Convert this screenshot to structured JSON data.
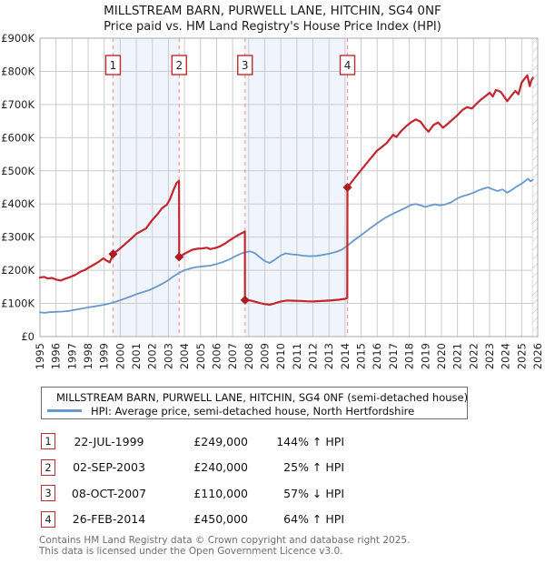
{
  "title": "MILLSTREAM BARN, PURWELL LANE, HITCHIN, SG4 0NF",
  "subtitle": "Price paid vs. HM Land Registry's House Price Index (HPI)",
  "colors": {
    "price_line": "#c4262e",
    "hpi_line": "#6899cc",
    "marker": "#b01a22",
    "dashed_line": "#f09a9a",
    "band": "#f0f4fc",
    "grid": "#cccccc",
    "frame": "#a8a8a8",
    "hatch_line": "#b8b8b8"
  },
  "chart_data": {
    "type": "line",
    "title": "MILLSTREAM BARN, PURWELL LANE, HITCHIN, SG4 0NF",
    "subtitle": "Price paid vs. HM Land Registry's House Price Index (HPI)",
    "xlabel": "",
    "ylabel": "",
    "grid": true,
    "x_axis": {
      "range": [
        1995,
        2026
      ],
      "ticks": [
        1995,
        1996,
        1997,
        1998,
        1999,
        2000,
        2001,
        2002,
        2003,
        2004,
        2005,
        2006,
        2007,
        2008,
        2009,
        2010,
        2011,
        2012,
        2013,
        2014,
        2015,
        2016,
        2017,
        2018,
        2019,
        2020,
        2021,
        2022,
        2023,
        2024,
        2025,
        2026
      ]
    },
    "y_axis": {
      "range": [
        0,
        900000
      ],
      "tick_values": [
        0,
        100000,
        200000,
        300000,
        400000,
        500000,
        600000,
        700000,
        800000,
        900000
      ],
      "tick_labels": [
        "£0",
        "£100K",
        "£200K",
        "£300K",
        "£400K",
        "£500K",
        "£600K",
        "£700K",
        "£800K",
        "£900K"
      ]
    },
    "ownership_bands": [
      [
        1999.55,
        2003.67
      ],
      [
        2007.77,
        2014.15
      ]
    ],
    "future_hatch": [
      2025.67,
      2026
    ],
    "sale_markers": [
      {
        "label": "1",
        "year": 1999.55,
        "price": 249000
      },
      {
        "label": "2",
        "year": 2003.67,
        "price": 240000
      },
      {
        "label": "3",
        "year": 2007.77,
        "price": 110000
      },
      {
        "label": "4",
        "year": 2014.15,
        "price": 450000
      }
    ],
    "series": [
      {
        "name": "MILLSTREAM BARN, PURWELL LANE, HITCHIN, SG4 0NF (semi-detached house)",
        "color": "#c4262e",
        "points": [
          [
            1995.0,
            178000
          ],
          [
            1995.25,
            180000
          ],
          [
            1995.5,
            175000
          ],
          [
            1995.75,
            177000
          ],
          [
            1996.0,
            172000
          ],
          [
            1996.3,
            169000
          ],
          [
            1996.6,
            175000
          ],
          [
            1996.9,
            180000
          ],
          [
            1997.2,
            186000
          ],
          [
            1997.5,
            195000
          ],
          [
            1997.8,
            201000
          ],
          [
            1998.1,
            210000
          ],
          [
            1998.4,
            218000
          ],
          [
            1998.7,
            227000
          ],
          [
            1998.95,
            236000
          ],
          [
            1999.15,
            229000
          ],
          [
            1999.35,
            224000
          ],
          [
            1999.55,
            249000
          ],
          [
            1999.9,
            262000
          ],
          [
            2000.3,
            279000
          ],
          [
            2000.7,
            296000
          ],
          [
            2001.0,
            310000
          ],
          [
            2001.3,
            318000
          ],
          [
            2001.6,
            326000
          ],
          [
            2002.0,
            352000
          ],
          [
            2002.3,
            368000
          ],
          [
            2002.6,
            387000
          ],
          [
            2002.9,
            398000
          ],
          [
            2003.1,
            415000
          ],
          [
            2003.3,
            440000
          ],
          [
            2003.5,
            463000
          ],
          [
            2003.66,
            470000
          ],
          [
            2003.67,
            240000
          ],
          [
            2003.9,
            247000
          ],
          [
            2004.2,
            255000
          ],
          [
            2004.5,
            262000
          ],
          [
            2004.8,
            265000
          ],
          [
            2005.1,
            266000
          ],
          [
            2005.4,
            268000
          ],
          [
            2005.6,
            264000
          ],
          [
            2005.9,
            267000
          ],
          [
            2006.2,
            272000
          ],
          [
            2006.5,
            280000
          ],
          [
            2006.8,
            290000
          ],
          [
            2007.1,
            299000
          ],
          [
            2007.4,
            308000
          ],
          [
            2007.65,
            314000
          ],
          [
            2007.76,
            317000
          ],
          [
            2007.77,
            110000
          ],
          [
            2008.1,
            109000
          ],
          [
            2008.4,
            105000
          ],
          [
            2008.7,
            101000
          ],
          [
            2009.0,
            98000
          ],
          [
            2009.3,
            96000
          ],
          [
            2009.6,
            100000
          ],
          [
            2010.0,
            106000
          ],
          [
            2010.4,
            109000
          ],
          [
            2010.8,
            108000
          ],
          [
            2011.2,
            107500
          ],
          [
            2011.6,
            106500
          ],
          [
            2012.0,
            106000
          ],
          [
            2012.4,
            107000
          ],
          [
            2012.8,
            108000
          ],
          [
            2013.2,
            109500
          ],
          [
            2013.6,
            111000
          ],
          [
            2014.0,
            114000
          ],
          [
            2014.14,
            116000
          ],
          [
            2014.15,
            450000
          ],
          [
            2014.5,
            472000
          ],
          [
            2015.0,
            502000
          ],
          [
            2015.5,
            532000
          ],
          [
            2016.0,
            561000
          ],
          [
            2016.3,
            572000
          ],
          [
            2016.6,
            584000
          ],
          [
            2017.0,
            609000
          ],
          [
            2017.2,
            602000
          ],
          [
            2017.5,
            620000
          ],
          [
            2017.8,
            634000
          ],
          [
            2018.1,
            646000
          ],
          [
            2018.4,
            655000
          ],
          [
            2018.7,
            648000
          ],
          [
            2019.0,
            628000
          ],
          [
            2019.2,
            618000
          ],
          [
            2019.5,
            638000
          ],
          [
            2019.8,
            646000
          ],
          [
            2020.1,
            630000
          ],
          [
            2020.4,
            642000
          ],
          [
            2020.7,
            655000
          ],
          [
            2021.0,
            668000
          ],
          [
            2021.3,
            683000
          ],
          [
            2021.6,
            692000
          ],
          [
            2021.9,
            688000
          ],
          [
            2022.2,
            703000
          ],
          [
            2022.5,
            716000
          ],
          [
            2022.8,
            727000
          ],
          [
            2023.0,
            736000
          ],
          [
            2023.2,
            724000
          ],
          [
            2023.4,
            744000
          ],
          [
            2023.7,
            738000
          ],
          [
            2023.9,
            724000
          ],
          [
            2024.1,
            710000
          ],
          [
            2024.35,
            726000
          ],
          [
            2024.6,
            741000
          ],
          [
            2024.8,
            731000
          ],
          [
            2025.0,
            766000
          ],
          [
            2025.2,
            779000
          ],
          [
            2025.35,
            788000
          ],
          [
            2025.5,
            755000
          ],
          [
            2025.6,
            772000
          ],
          [
            2025.7,
            781000
          ]
        ]
      },
      {
        "name": "HPI: Average price, semi-detached house, North Hertfordshire",
        "color": "#6899cc",
        "points": [
          [
            1995.0,
            73000
          ],
          [
            1995.3,
            72000
          ],
          [
            1995.6,
            73500
          ],
          [
            1996.0,
            74500
          ],
          [
            1996.4,
            75500
          ],
          [
            1996.8,
            77500
          ],
          [
            1997.2,
            81000
          ],
          [
            1997.6,
            84500
          ],
          [
            1998.0,
            88000
          ],
          [
            1998.4,
            91000
          ],
          [
            1998.8,
            94500
          ],
          [
            1999.2,
            98000
          ],
          [
            1999.55,
            102000
          ],
          [
            1999.9,
            108000
          ],
          [
            2000.3,
            115000
          ],
          [
            2000.7,
            122000
          ],
          [
            2001.0,
            128000
          ],
          [
            2001.4,
            134000
          ],
          [
            2001.8,
            140000
          ],
          [
            2002.2,
            149000
          ],
          [
            2002.6,
            159000
          ],
          [
            2003.0,
            170000
          ],
          [
            2003.3,
            181000
          ],
          [
            2003.67,
            192000
          ],
          [
            2004.0,
            200000
          ],
          [
            2004.4,
            206000
          ],
          [
            2004.8,
            210000
          ],
          [
            2005.2,
            212000
          ],
          [
            2005.6,
            214000
          ],
          [
            2006.0,
            219000
          ],
          [
            2006.4,
            225000
          ],
          [
            2006.8,
            233000
          ],
          [
            2007.2,
            243000
          ],
          [
            2007.5,
            250000
          ],
          [
            2007.77,
            254000
          ],
          [
            2008.1,
            257000
          ],
          [
            2008.4,
            251000
          ],
          [
            2008.7,
            239000
          ],
          [
            2009.0,
            228000
          ],
          [
            2009.3,
            222000
          ],
          [
            2009.6,
            231000
          ],
          [
            2010.0,
            245000
          ],
          [
            2010.3,
            251000
          ],
          [
            2010.7,
            248000
          ],
          [
            2011.0,
            247000
          ],
          [
            2011.4,
            244000
          ],
          [
            2011.8,
            242500
          ],
          [
            2012.2,
            243500
          ],
          [
            2012.6,
            246000
          ],
          [
            2013.0,
            250000
          ],
          [
            2013.4,
            255000
          ],
          [
            2013.8,
            262000
          ],
          [
            2014.15,
            274000
          ],
          [
            2014.5,
            288000
          ],
          [
            2015.0,
            306000
          ],
          [
            2015.5,
            324000
          ],
          [
            2016.0,
            342000
          ],
          [
            2016.5,
            358000
          ],
          [
            2017.0,
            371000
          ],
          [
            2017.4,
            380000
          ],
          [
            2017.8,
            389000
          ],
          [
            2018.1,
            397000
          ],
          [
            2018.4,
            400000
          ],
          [
            2018.7,
            396000
          ],
          [
            2019.0,
            391000
          ],
          [
            2019.3,
            395000
          ],
          [
            2019.6,
            399000
          ],
          [
            2019.9,
            396000
          ],
          [
            2020.2,
            398000
          ],
          [
            2020.6,
            405000
          ],
          [
            2021.0,
            417000
          ],
          [
            2021.3,
            423000
          ],
          [
            2021.6,
            427000
          ],
          [
            2022.0,
            434000
          ],
          [
            2022.3,
            441000
          ],
          [
            2022.6,
            446000
          ],
          [
            2022.9,
            450000
          ],
          [
            2023.2,
            444000
          ],
          [
            2023.5,
            439000
          ],
          [
            2023.8,
            444000
          ],
          [
            2024.1,
            434000
          ],
          [
            2024.4,
            443000
          ],
          [
            2024.7,
            453000
          ],
          [
            2025.0,
            461000
          ],
          [
            2025.2,
            469000
          ],
          [
            2025.4,
            476000
          ],
          [
            2025.55,
            468000
          ],
          [
            2025.7,
            473000
          ]
        ]
      }
    ],
    "legend_position": "bottom"
  },
  "legend": {
    "items": [
      {
        "label": "MILLSTREAM BARN, PURWELL LANE, HITCHIN, SG4 0NF (semi-detached house)",
        "color": "#c4262e"
      },
      {
        "label": "HPI: Average price, semi-detached house, North Hertfordshire",
        "color": "#6899cc"
      }
    ]
  },
  "transactions": [
    {
      "num": "1",
      "date": "22-JUL-1999",
      "price": "£249,000",
      "hpi_text": "144% ↑ HPI"
    },
    {
      "num": "2",
      "date": "02-SEP-2003",
      "price": "£240,000",
      "hpi_text": "25% ↑ HPI"
    },
    {
      "num": "3",
      "date": "08-OCT-2007",
      "price": "£110,000",
      "hpi_text": "57% ↓ HPI"
    },
    {
      "num": "4",
      "date": "26-FEB-2014",
      "price": "£450,000",
      "hpi_text": "64% ↑ HPI"
    }
  ],
  "footer": {
    "line1": "Contains HM Land Registry data © Crown copyright and database right 2025.",
    "line2": "This data is licensed under the Open Government Licence v3.0."
  }
}
